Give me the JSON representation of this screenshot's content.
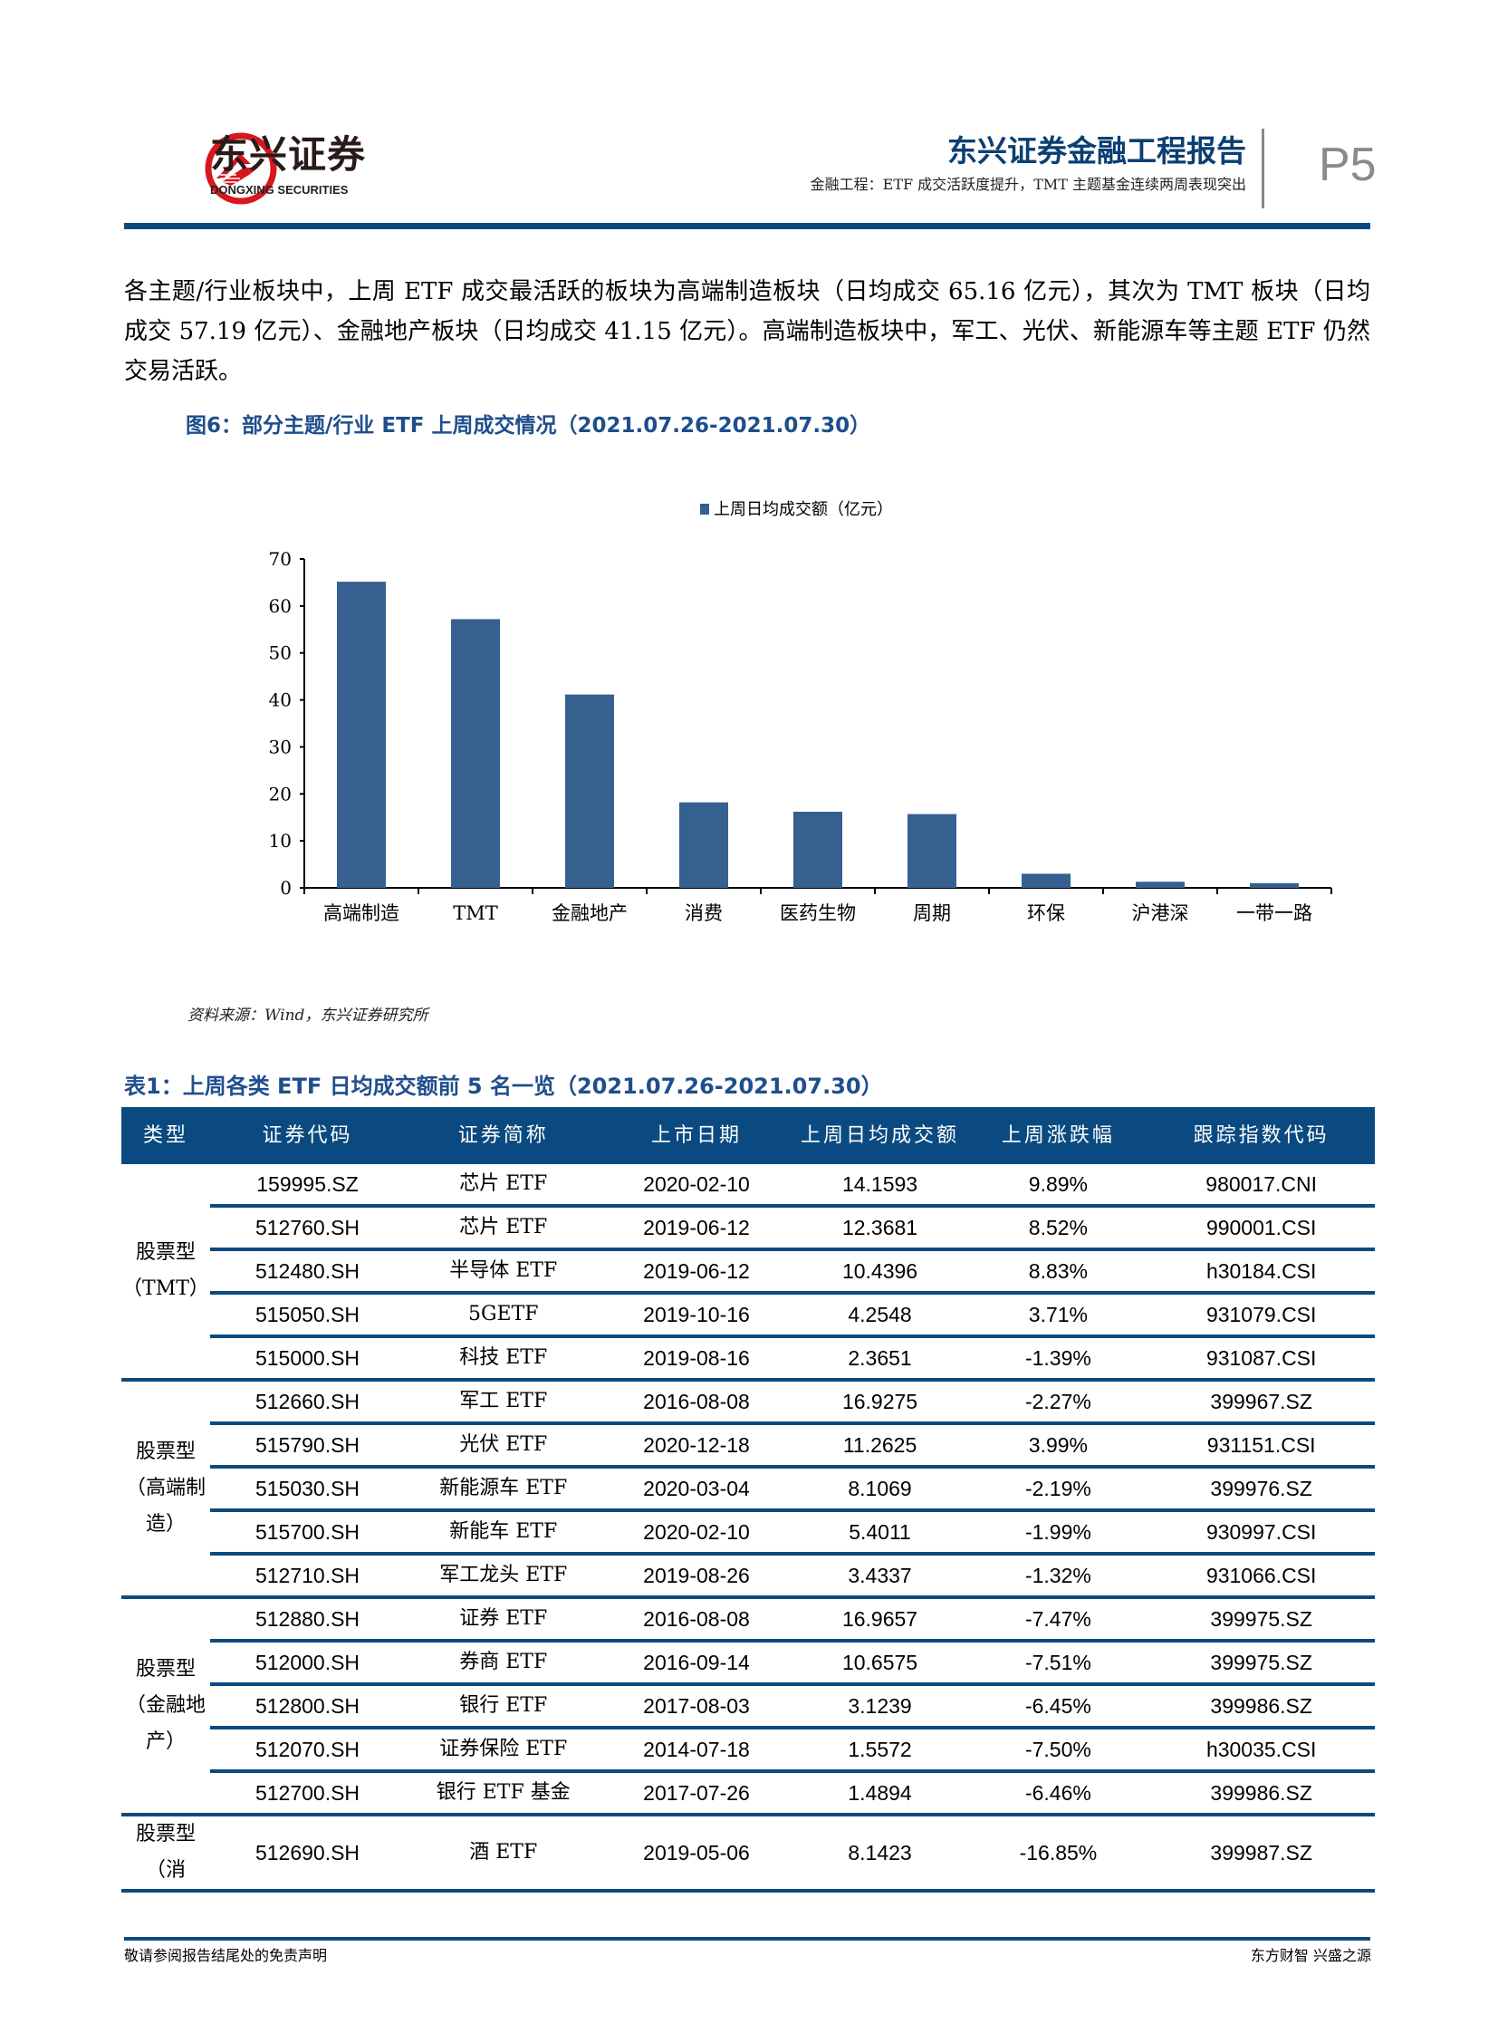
{
  "header": {
    "logo_cn": "东兴证券",
    "logo_en": "DONGXING SECURITIES",
    "report_title": "东兴证券金融工程报告",
    "report_subtitle": "金融工程：ETF 成交活跃度提升，TMT 主题基金连续两周表现突出",
    "page": "P5",
    "brand_color": "#0b4a80",
    "logo_color": "#d7161e"
  },
  "body": {
    "paragraph": "各主题/行业板块中，上周 ETF 成交最活跃的板块为高端制造板块（日均成交 65.16 亿元），其次为 TMT 板块（日均成交 57.19 亿元）、金融地产板块（日均成交 41.15 亿元）。高端制造板块中，军工、光伏、新能源车等主题 ETF 仍然交易活跃。"
  },
  "figure": {
    "caption": "图6：部分主题/行业 ETF 上周成交情况（2021.07.26-2021.07.30）",
    "source": "资料来源：Wind，东兴证券研究所"
  },
  "chart_data": {
    "type": "bar",
    "categories": [
      "高端制造",
      "TMT",
      "金融地产",
      "消费",
      "医药生物",
      "周期",
      "环保",
      "沪港深",
      "一带一路"
    ],
    "series": [
      {
        "name": "上周日均成交额（亿元）",
        "values": [
          65.16,
          57.19,
          41.15,
          18.2,
          16.2,
          15.7,
          3.0,
          1.3,
          1.0
        ],
        "color": "#35608f"
      }
    ],
    "ylim": [
      0,
      70
    ],
    "yticks": [
      0,
      10,
      20,
      30,
      40,
      50,
      60,
      70
    ],
    "legend": "top-center",
    "grid": false
  },
  "table": {
    "title": "表1：上周各类 ETF 日均成交额前 5 名一览（2021.07.26-2021.07.30）",
    "columns": [
      "类型",
      "证券代码",
      "证券简称",
      "上市日期",
      "上周日均成交额",
      "上周涨跌幅",
      "跟踪指数代码"
    ],
    "groups": [
      {
        "type": [
          "股票型",
          "（TMT）"
        ],
        "rows": [
          [
            "159995.SZ",
            "芯片 ETF",
            "2020-02-10",
            "14.1593",
            "9.89%",
            "980017.CNI"
          ],
          [
            "512760.SH",
            "芯片 ETF",
            "2019-06-12",
            "12.3681",
            "8.52%",
            "990001.CSI"
          ],
          [
            "512480.SH",
            "半导体 ETF",
            "2019-06-12",
            "10.4396",
            "8.83%",
            "h30184.CSI"
          ],
          [
            "515050.SH",
            "5GETF",
            "2019-10-16",
            "4.2548",
            "3.71%",
            "931079.CSI"
          ],
          [
            "515000.SH",
            "科技 ETF",
            "2019-08-16",
            "2.3651",
            "-1.39%",
            "931087.CSI"
          ]
        ]
      },
      {
        "type": [
          "股票型",
          "（高端制造）"
        ],
        "rows": [
          [
            "512660.SH",
            "军工 ETF",
            "2016-08-08",
            "16.9275",
            "-2.27%",
            "399967.SZ"
          ],
          [
            "515790.SH",
            "光伏 ETF",
            "2020-12-18",
            "11.2625",
            "3.99%",
            "931151.CSI"
          ],
          [
            "515030.SH",
            "新能源车 ETF",
            "2020-03-04",
            "8.1069",
            "-2.19%",
            "399976.SZ"
          ],
          [
            "515700.SH",
            "新能车 ETF",
            "2020-02-10",
            "5.4011",
            "-1.99%",
            "930997.CSI"
          ],
          [
            "512710.SH",
            "军工龙头 ETF",
            "2019-08-26",
            "3.4337",
            "-1.32%",
            "931066.CSI"
          ]
        ]
      },
      {
        "type": [
          "股票型",
          "（金融地产）"
        ],
        "rows": [
          [
            "512880.SH",
            "证券 ETF",
            "2016-08-08",
            "16.9657",
            "-7.47%",
            "399975.SZ"
          ],
          [
            "512000.SH",
            "券商 ETF",
            "2016-09-14",
            "10.6575",
            "-7.51%",
            "399975.SZ"
          ],
          [
            "512800.SH",
            "银行 ETF",
            "2017-08-03",
            "3.1239",
            "-6.45%",
            "399986.SZ"
          ],
          [
            "512070.SH",
            "证券保险 ETF",
            "2014-07-18",
            "1.5572",
            "-7.50%",
            "h30035.CSI"
          ],
          [
            "512700.SH",
            "银行 ETF 基金",
            "2017-07-26",
            "1.4894",
            "-6.46%",
            "399986.SZ"
          ]
        ]
      },
      {
        "type": [
          "股票型（消"
        ],
        "rows": [
          [
            "512690.SH",
            "酒 ETF",
            "2019-05-06",
            "8.1423",
            "-16.85%",
            "399987.SZ"
          ]
        ]
      }
    ]
  },
  "footer": {
    "left": "敬请参阅报告结尾处的免责声明",
    "right": "东方财智 兴盛之源"
  }
}
